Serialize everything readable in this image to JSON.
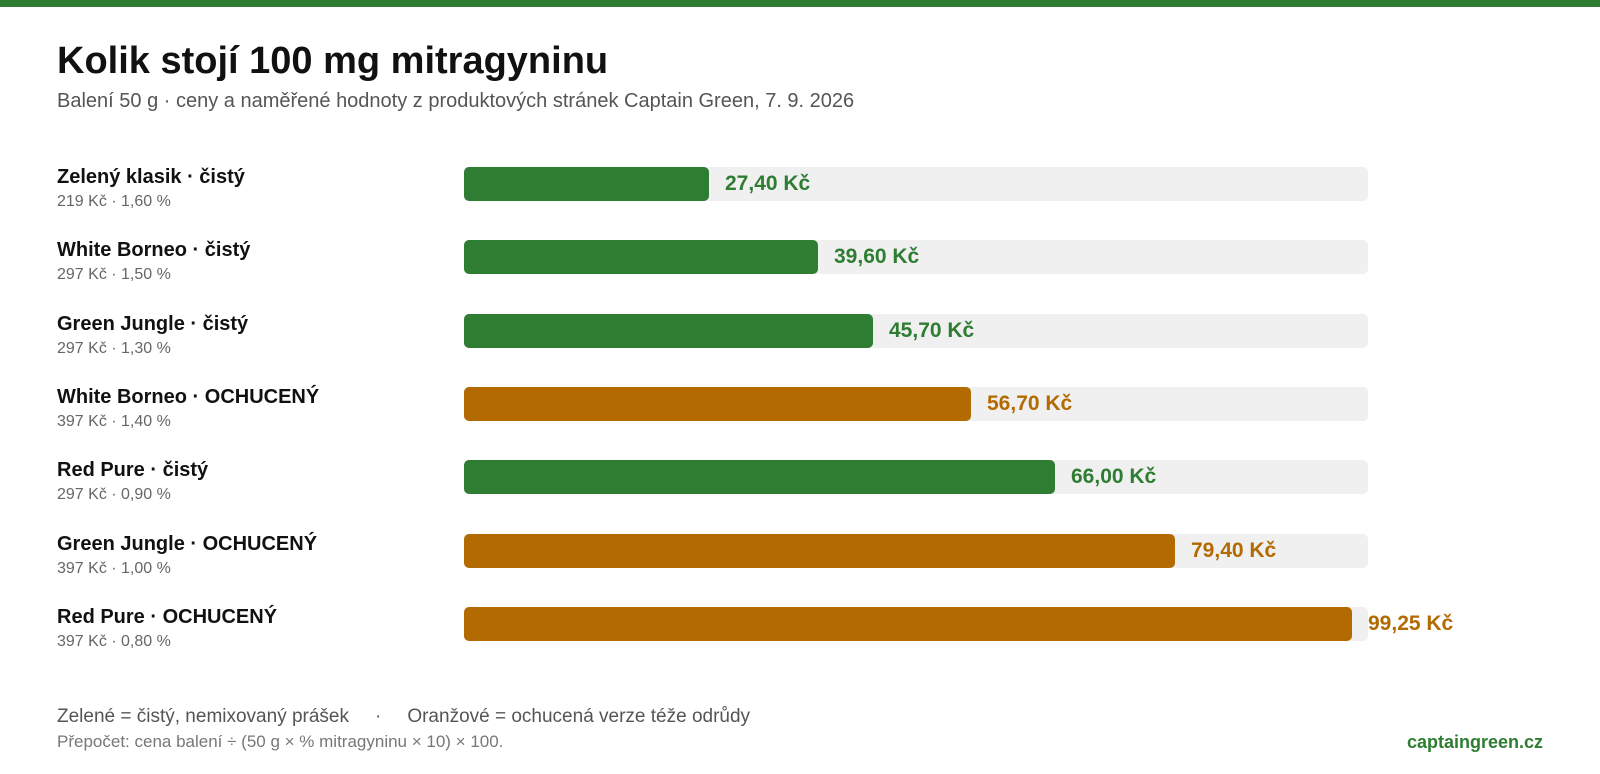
{
  "header": {
    "title": "Kolik stojí 100 mg mitragyninu",
    "subtitle": "Balení 50 g · ceny a naměřené hodnoty z produktových stránek Captain Green, 7. 9. 2026"
  },
  "colors": {
    "accent": "#2e7d32",
    "pure": "#2e7d32",
    "flavored": "#b36a00",
    "track": "#f0f0f0"
  },
  "chart_data": {
    "type": "bar",
    "orientation": "horizontal",
    "title": "Kolik stojí 100 mg mitragyninu",
    "subtitle": "Balení 50 g · ceny a naměřené hodnoty z produktových stránek Captain Green, 7. 9. 2026",
    "xlim": [
      0,
      101
    ],
    "grid": false,
    "categories": [
      "Zelený klasik · čistý",
      "White Borneo · čistý",
      "Green Jungle · čistý",
      "White Borneo · OCHUCENÝ",
      "Red Pure · čistý",
      "Green Jungle · OCHUCENÝ",
      "Red Pure · OCHUCENÝ"
    ],
    "values": [
      27.4,
      39.6,
      45.7,
      56.7,
      66.0,
      79.4,
      99.25
    ],
    "rows": [
      {
        "name": "Zelený klasik · čistý",
        "meta": "219 Kč · 1,60 %",
        "value": 27.4,
        "value_label": "27,40 Kč",
        "kind": "pure"
      },
      {
        "name": "White Borneo · čistý",
        "meta": "297 Kč · 1,50 %",
        "value": 39.6,
        "value_label": "39,60 Kč",
        "kind": "pure"
      },
      {
        "name": "Green Jungle · čistý",
        "meta": "297 Kč · 1,30 %",
        "value": 45.7,
        "value_label": "45,70 Kč",
        "kind": "pure"
      },
      {
        "name": "White Borneo · OCHUCENÝ",
        "meta": "397 Kč · 1,40 %",
        "value": 56.7,
        "value_label": "56,70 Kč",
        "kind": "flavored"
      },
      {
        "name": "Red Pure · čistý",
        "meta": "297 Kč · 0,90 %",
        "value": 66.0,
        "value_label": "66,00 Kč",
        "kind": "pure"
      },
      {
        "name": "Green Jungle · OCHUCENÝ",
        "meta": "397 Kč · 1,00 %",
        "value": 79.4,
        "value_label": "79,40 Kč",
        "kind": "flavored"
      },
      {
        "name": "Red Pure · OCHUCENÝ",
        "meta": "397 Kč · 0,80 %",
        "value": 99.25,
        "value_label": "99,25 Kč",
        "kind": "flavored"
      }
    ],
    "legend": {
      "pure": "Zelené = čistý, nemixovaný prášek",
      "separator": "·",
      "flavored": "Oranžové = ochucená verze téže odrůdy"
    },
    "note": "Přepočet: cena balení ÷ (50 g × % mitragyninu × 10) × 100."
  },
  "footer": {
    "brand": "captaingreen.cz"
  }
}
